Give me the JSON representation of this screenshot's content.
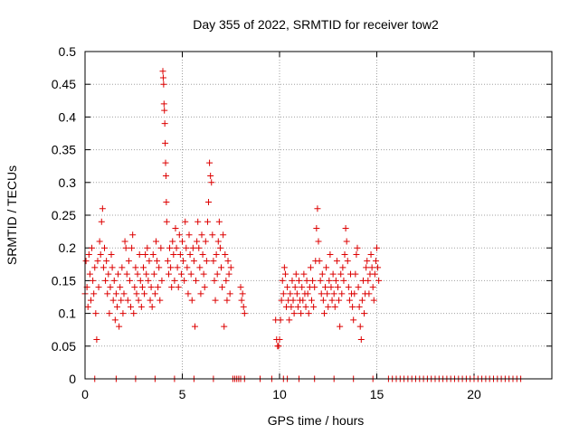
{
  "chart_data": {
    "type": "scatter",
    "title": "Day 355 of 2022, SRMTID for receiver tow2",
    "xlabel": "GPS time / hours",
    "ylabel": "SRMTID / TECUs",
    "xlim": [
      0,
      24
    ],
    "ylim": [
      0,
      0.5
    ],
    "xticks": [
      0,
      5,
      10,
      15,
      20
    ],
    "xtick_labels": [
      "0",
      "5",
      "10",
      "15",
      "20"
    ],
    "yticks": [
      0,
      0.05,
      0.1,
      0.15,
      0.2,
      0.25,
      0.3,
      0.35,
      0.4,
      0.45,
      0.5
    ],
    "ytick_labels": [
      "0",
      "0.05",
      "0.1",
      "0.15",
      "0.2",
      "0.25",
      "0.3",
      "0.35",
      "0.4",
      "0.45",
      "0.5"
    ],
    "grid": true,
    "marker": "plus",
    "color": "#dd0000",
    "series": [
      {
        "name": "SRMTID",
        "points": [
          [
            0.0,
            0.13
          ],
          [
            0.05,
            0.18
          ],
          [
            0.1,
            0.14
          ],
          [
            0.15,
            0.11
          ],
          [
            0.2,
            0.19
          ],
          [
            0.25,
            0.16
          ],
          [
            0.3,
            0.12
          ],
          [
            0.35,
            0.2
          ],
          [
            0.4,
            0.15
          ],
          [
            0.45,
            0.13
          ],
          [
            0.5,
            0.17
          ],
          [
            0.55,
            0.1
          ],
          [
            0.6,
            0.06
          ],
          [
            0.65,
            0.18
          ],
          [
            0.7,
            0.14
          ],
          [
            0.75,
            0.21
          ],
          [
            0.8,
            0.19
          ],
          [
            0.85,
            0.24
          ],
          [
            0.9,
            0.26
          ],
          [
            0.95,
            0.17
          ],
          [
            1.0,
            0.2
          ],
          [
            1.05,
            0.15
          ],
          [
            1.1,
            0.18
          ],
          [
            1.15,
            0.13
          ],
          [
            1.2,
            0.16
          ],
          [
            1.25,
            0.1
          ],
          [
            1.3,
            0.14
          ],
          [
            1.35,
            0.19
          ],
          [
            1.4,
            0.17
          ],
          [
            1.45,
            0.12
          ],
          [
            1.5,
            0.15
          ],
          [
            1.55,
            0.09
          ],
          [
            1.6,
            0.13
          ],
          [
            1.65,
            0.11
          ],
          [
            1.7,
            0.16
          ],
          [
            1.75,
            0.08
          ],
          [
            1.8,
            0.14
          ],
          [
            1.85,
            0.12
          ],
          [
            1.9,
            0.17
          ],
          [
            1.95,
            0.1
          ],
          [
            2.0,
            0.13
          ],
          [
            2.05,
            0.21
          ],
          [
            2.1,
            0.2
          ],
          [
            2.15,
            0.16
          ],
          [
            2.2,
            0.12
          ],
          [
            2.25,
            0.18
          ],
          [
            2.3,
            0.15
          ],
          [
            2.35,
            0.11
          ],
          [
            2.4,
            0.2
          ],
          [
            2.45,
            0.22
          ],
          [
            2.5,
            0.1
          ],
          [
            2.55,
            0.14
          ],
          [
            2.6,
            0.17
          ],
          [
            2.65,
            0.13
          ],
          [
            2.7,
            0.16
          ],
          [
            2.75,
            0.12
          ],
          [
            2.8,
            0.19
          ],
          [
            2.85,
            0.15
          ],
          [
            2.9,
            0.11
          ],
          [
            2.95,
            0.14
          ],
          [
            3.0,
            0.17
          ],
          [
            3.05,
            0.13
          ],
          [
            3.1,
            0.19
          ],
          [
            3.15,
            0.16
          ],
          [
            3.2,
            0.2
          ],
          [
            3.25,
            0.15
          ],
          [
            3.3,
            0.18
          ],
          [
            3.35,
            0.12
          ],
          [
            3.4,
            0.14
          ],
          [
            3.45,
            0.11
          ],
          [
            3.5,
            0.19
          ],
          [
            3.55,
            0.16
          ],
          [
            3.6,
            0.13
          ],
          [
            3.65,
            0.21
          ],
          [
            3.7,
            0.18
          ],
          [
            3.75,
            0.14
          ],
          [
            3.8,
            0.17
          ],
          [
            3.85,
            0.12
          ],
          [
            3.9,
            0.2
          ],
          [
            3.95,
            0.15
          ],
          [
            4.0,
            0.47
          ],
          [
            4.02,
            0.46
          ],
          [
            4.04,
            0.45
          ],
          [
            4.06,
            0.42
          ],
          [
            4.08,
            0.41
          ],
          [
            4.1,
            0.39
          ],
          [
            4.12,
            0.36
          ],
          [
            4.14,
            0.33
          ],
          [
            4.16,
            0.31
          ],
          [
            4.18,
            0.27
          ],
          [
            4.2,
            0.24
          ],
          [
            4.25,
            0.18
          ],
          [
            4.3,
            0.16
          ],
          [
            4.35,
            0.2
          ],
          [
            4.4,
            0.17
          ],
          [
            4.45,
            0.14
          ],
          [
            4.5,
            0.21
          ],
          [
            4.55,
            0.19
          ],
          [
            4.6,
            0.15
          ],
          [
            4.65,
            0.23
          ],
          [
            4.7,
            0.2
          ],
          [
            4.75,
            0.17
          ],
          [
            4.8,
            0.14
          ],
          [
            4.85,
            0.22
          ],
          [
            4.9,
            0.19
          ],
          [
            4.95,
            0.16
          ],
          [
            5.0,
            0.21
          ],
          [
            5.05,
            0.18
          ],
          [
            5.1,
            0.15
          ],
          [
            5.15,
            0.24
          ],
          [
            5.2,
            0.2
          ],
          [
            5.25,
            0.17
          ],
          [
            5.3,
            0.13
          ],
          [
            5.35,
            0.22
          ],
          [
            5.4,
            0.19
          ],
          [
            5.45,
            0.16
          ],
          [
            5.5,
            0.12
          ],
          [
            5.55,
            0.2
          ],
          [
            5.6,
            0.18
          ],
          [
            5.65,
            0.08
          ],
          [
            5.7,
            0.15
          ],
          [
            5.75,
            0.21
          ],
          [
            5.8,
            0.24
          ],
          [
            5.85,
            0.2
          ],
          [
            5.9,
            0.17
          ],
          [
            5.95,
            0.13
          ],
          [
            6.0,
            0.22
          ],
          [
            6.05,
            0.19
          ],
          [
            6.1,
            0.16
          ],
          [
            6.15,
            0.14
          ],
          [
            6.2,
            0.21
          ],
          [
            6.25,
            0.18
          ],
          [
            6.3,
            0.24
          ],
          [
            6.35,
            0.27
          ],
          [
            6.4,
            0.33
          ],
          [
            6.45,
            0.31
          ],
          [
            6.5,
            0.3
          ],
          [
            6.55,
            0.22
          ],
          [
            6.6,
            0.18
          ],
          [
            6.65,
            0.15
          ],
          [
            6.7,
            0.12
          ],
          [
            6.75,
            0.19
          ],
          [
            6.8,
            0.16
          ],
          [
            6.85,
            0.21
          ],
          [
            6.9,
            0.24
          ],
          [
            6.95,
            0.2
          ],
          [
            7.0,
            0.17
          ],
          [
            7.05,
            0.14
          ],
          [
            7.1,
            0.22
          ],
          [
            7.15,
            0.08
          ],
          [
            7.2,
            0.19
          ],
          [
            7.25,
            0.15
          ],
          [
            7.3,
            0.12
          ],
          [
            7.35,
            0.18
          ],
          [
            7.4,
            0.16
          ],
          [
            7.45,
            0.13
          ],
          [
            7.5,
            0.17
          ],
          [
            8.0,
            0.14
          ],
          [
            8.05,
            0.12
          ],
          [
            8.1,
            0.13
          ],
          [
            8.15,
            0.11
          ],
          [
            8.2,
            0.1
          ],
          [
            9.8,
            0.09
          ],
          [
            9.85,
            0.06
          ],
          [
            9.9,
            0.05
          ],
          [
            9.95,
            0.05
          ],
          [
            10.0,
            0.06
          ],
          [
            10.05,
            0.09
          ],
          [
            10.1,
            0.12
          ],
          [
            10.15,
            0.15
          ],
          [
            10.2,
            0.13
          ],
          [
            10.25,
            0.17
          ],
          [
            10.3,
            0.16
          ],
          [
            10.35,
            0.11
          ],
          [
            10.4,
            0.14
          ],
          [
            10.45,
            0.12
          ],
          [
            10.5,
            0.09
          ],
          [
            10.55,
            0.13
          ],
          [
            10.6,
            0.11
          ],
          [
            10.65,
            0.15
          ],
          [
            10.7,
            0.12
          ],
          [
            10.75,
            0.1
          ],
          [
            10.8,
            0.14
          ],
          [
            10.85,
            0.16
          ],
          [
            10.9,
            0.13
          ],
          [
            10.95,
            0.11
          ],
          [
            11.0,
            0.15
          ],
          [
            11.05,
            0.12
          ],
          [
            11.1,
            0.1
          ],
          [
            11.15,
            0.14
          ],
          [
            11.2,
            0.12
          ],
          [
            11.25,
            0.16
          ],
          [
            11.3,
            0.13
          ],
          [
            11.35,
            0.11
          ],
          [
            11.4,
            0.15
          ],
          [
            11.45,
            0.13
          ],
          [
            11.5,
            0.1
          ],
          [
            11.55,
            0.14
          ],
          [
            11.6,
            0.17
          ],
          [
            11.65,
            0.12
          ],
          [
            11.7,
            0.15
          ],
          [
            11.75,
            0.11
          ],
          [
            11.8,
            0.14
          ],
          [
            11.85,
            0.18
          ],
          [
            11.9,
            0.23
          ],
          [
            11.95,
            0.26
          ],
          [
            12.0,
            0.21
          ],
          [
            12.05,
            0.18
          ],
          [
            12.1,
            0.15
          ],
          [
            12.15,
            0.13
          ],
          [
            12.2,
            0.16
          ],
          [
            12.25,
            0.12
          ],
          [
            12.3,
            0.1
          ],
          [
            12.35,
            0.14
          ],
          [
            12.4,
            0.17
          ],
          [
            12.45,
            0.13
          ],
          [
            12.5,
            0.11
          ],
          [
            12.55,
            0.15
          ],
          [
            12.6,
            0.19
          ],
          [
            12.65,
            0.14
          ],
          [
            12.7,
            0.12
          ],
          [
            12.75,
            0.16
          ],
          [
            12.8,
            0.13
          ],
          [
            12.85,
            0.11
          ],
          [
            12.9,
            0.15
          ],
          [
            12.95,
            0.18
          ],
          [
            13.0,
            0.14
          ],
          [
            13.05,
            0.12
          ],
          [
            13.1,
            0.08
          ],
          [
            13.15,
            0.16
          ],
          [
            13.2,
            0.13
          ],
          [
            13.25,
            0.17
          ],
          [
            13.3,
            0.15
          ],
          [
            13.35,
            0.19
          ],
          [
            13.4,
            0.23
          ],
          [
            13.45,
            0.21
          ],
          [
            13.5,
            0.18
          ],
          [
            13.55,
            0.14
          ],
          [
            13.6,
            0.12
          ],
          [
            13.65,
            0.16
          ],
          [
            13.7,
            0.13
          ],
          [
            13.75,
            0.11
          ],
          [
            13.8,
            0.09
          ],
          [
            13.85,
            0.13
          ],
          [
            13.9,
            0.16
          ],
          [
            13.95,
            0.19
          ],
          [
            14.0,
            0.2
          ],
          [
            14.05,
            0.14
          ],
          [
            14.1,
            0.11
          ],
          [
            14.15,
            0.08
          ],
          [
            14.2,
            0.06
          ],
          [
            14.25,
            0.12
          ],
          [
            14.3,
            0.15
          ],
          [
            14.35,
            0.1
          ],
          [
            14.4,
            0.13
          ],
          [
            14.45,
            0.17
          ],
          [
            14.5,
            0.18
          ],
          [
            14.55,
            0.15
          ],
          [
            14.6,
            0.13
          ],
          [
            14.65,
            0.16
          ],
          [
            14.7,
            0.19
          ],
          [
            14.75,
            0.17
          ],
          [
            14.8,
            0.14
          ],
          [
            14.85,
            0.12
          ],
          [
            14.9,
            0.16
          ],
          [
            14.95,
            0.18
          ],
          [
            15.0,
            0.2
          ],
          [
            15.05,
            0.17
          ],
          [
            15.1,
            0.15
          ]
        ]
      }
    ],
    "zero_points_x": [
      0.5,
      1.6,
      2.6,
      3.6,
      4.6,
      5.6,
      6.6,
      7.6,
      7.7,
      7.8,
      7.9,
      8.0,
      8.2,
      9.0,
      9.6,
      10.2,
      10.4,
      11.0,
      11.8,
      12.8,
      13.8,
      14.8,
      15.6,
      15.8,
      16.0,
      16.2,
      16.4,
      16.6,
      16.8,
      17.0,
      17.2,
      17.4,
      17.6,
      17.8,
      18.0,
      18.2,
      18.4,
      18.6,
      18.8,
      19.0,
      19.2,
      19.4,
      19.6,
      19.8,
      20.0,
      20.2,
      20.4,
      20.6,
      20.8,
      21.0,
      21.2,
      21.4,
      21.6,
      21.8,
      22.0,
      22.2,
      22.4
    ]
  }
}
